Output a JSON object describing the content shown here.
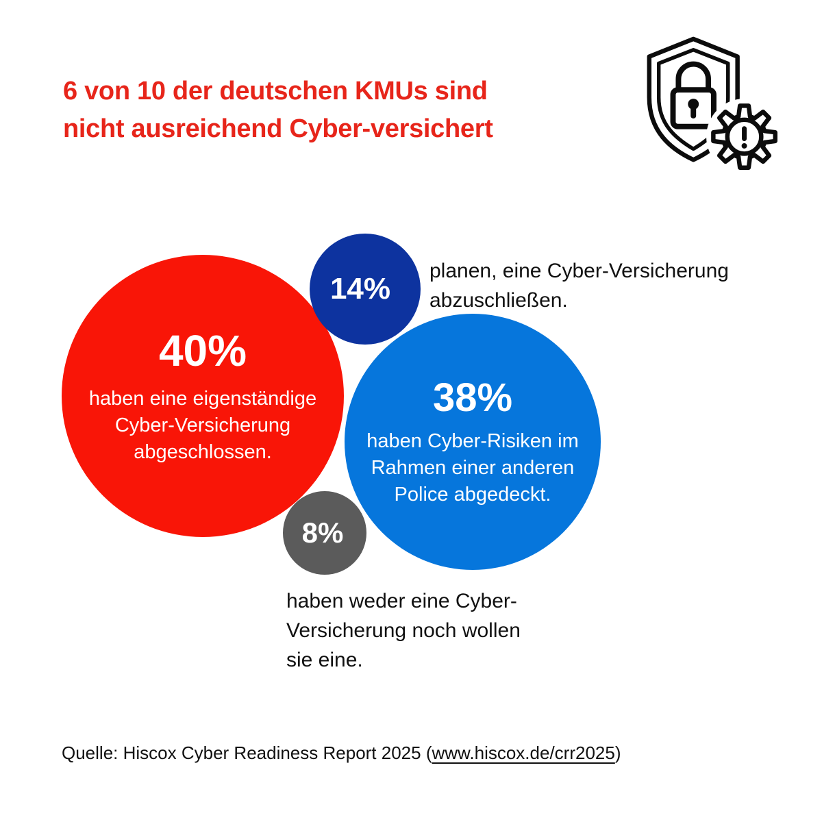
{
  "header": {
    "title_line1": "6 von 10 der deutschen KMUs sind",
    "title_line2": "nicht ausreichend Cyber-versichert",
    "title_color": "#e7251a",
    "icon": "shield-lock-with-gear-alert-icon"
  },
  "chart_data": {
    "type": "bubble",
    "title": "6 von 10 der deutschen KMUs sind nicht ausreichend Cyber-versichert",
    "unit": "percent",
    "legend_position": "none",
    "bubbles": [
      {
        "id": "eigenstaendige-cyber-versicherung",
        "percent": 40,
        "display_value": "40%",
        "label": "haben eine eigenständige Cyber-Versicherung abgeschlossen.",
        "label_lines": [
          "haben eine eigenständige",
          "Cyber-Versicherung",
          "abgeschlossen."
        ],
        "color": "#f91507",
        "text_color": "#ffffff",
        "label_placement": "inside"
      },
      {
        "id": "andere-police",
        "percent": 38,
        "display_value": "38%",
        "label": "haben Cyber-Risiken im Rahmen einer anderen Police abgedeckt.",
        "label_lines": [
          "haben Cyber-Risiken im",
          "Rahmen einer anderen",
          "Police abgedeckt."
        ],
        "color": "#0676dc",
        "text_color": "#ffffff",
        "label_placement": "inside"
      },
      {
        "id": "planen-abschluss",
        "percent": 14,
        "display_value": "14%",
        "label": "planen, eine Cyber-Versicherung abzuschließen.",
        "label_lines": [
          "planen, eine Cyber-Versicherung",
          "abzuschließen."
        ],
        "color": "#0d339f",
        "text_color": "#ffffff",
        "label_placement": "outside-right"
      },
      {
        "id": "keine-und-wollen-keine",
        "percent": 8,
        "display_value": "8%",
        "label": "haben weder eine Cyber-Versicherung noch wollen sie eine.",
        "label_lines": [
          "haben weder eine Cyber-",
          "Versicherung noch wollen",
          "sie eine."
        ],
        "color": "#5b5b5b",
        "text_color": "#ffffff",
        "label_placement": "outside-below"
      }
    ]
  },
  "footer": {
    "source_prefix": "Quelle: Hiscox Cyber Readiness Report 2025 (",
    "source_link": "www.hiscox.de/crr2025",
    "source_suffix": ")"
  }
}
